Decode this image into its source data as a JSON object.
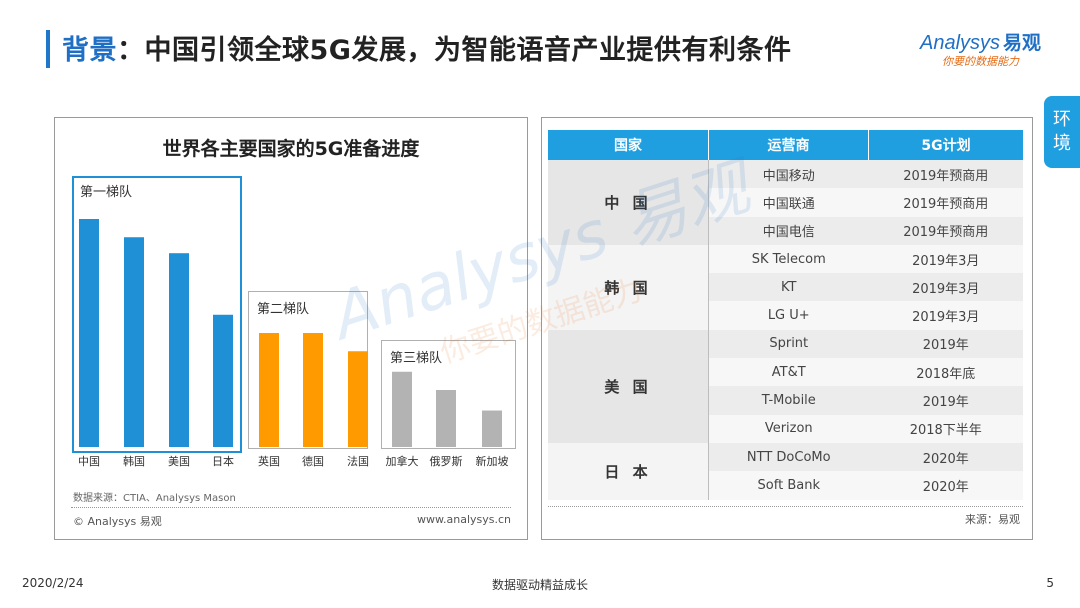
{
  "header": {
    "title_accent": "背景",
    "title_rest": "：中国引领全球5G发展，为智能语音产业提供有利条件",
    "logo_text": "Analysys",
    "logo_cn": "易观",
    "logo_tagline": "你要的数据能力"
  },
  "side_tab": {
    "label_line1": "环",
    "label_line2": "境"
  },
  "left_panel": {
    "source": "数据来源：CTIA、Analysys Mason",
    "copyright": "© Analysys 易观",
    "website": "www.analysys.cn"
  },
  "chart_data": {
    "type": "bar",
    "title": "世界各主要国家的5G准备进度",
    "groups": [
      {
        "label": "第一梯队",
        "color": "#1f8fd6",
        "categories": [
          "中国",
          "韩国",
          "美国",
          "日本"
        ],
        "values": [
          100,
          92,
          85,
          58
        ]
      },
      {
        "label": "第二梯队",
        "color": "#ff9a00",
        "categories": [
          "英国",
          "德国",
          "法国"
        ],
        "values": [
          50,
          50,
          42
        ]
      },
      {
        "label": "第三梯队",
        "color": "#b3b3b3",
        "categories": [
          "加拿大",
          "俄罗斯",
          "新加坡"
        ],
        "values": [
          33,
          25,
          16
        ]
      }
    ],
    "ylim": [
      0,
      100
    ]
  },
  "table": {
    "headers": [
      "国家",
      "运营商",
      "5G计划"
    ],
    "groups": [
      {
        "country": "中 国",
        "rows": [
          [
            "中国移动",
            "2019年预商用"
          ],
          [
            "中国联通",
            "2019年预商用"
          ],
          [
            "中国电信",
            "2019年预商用"
          ]
        ]
      },
      {
        "country": "韩 国",
        "rows": [
          [
            "SK Telecom",
            "2019年3月"
          ],
          [
            "KT",
            "2019年3月"
          ],
          [
            "LG U+",
            "2019年3月"
          ]
        ]
      },
      {
        "country": "美 国",
        "rows": [
          [
            "Sprint",
            "2019年"
          ],
          [
            "AT&T",
            "2018年底"
          ],
          [
            "T-Mobile",
            "2019年"
          ],
          [
            "Verizon",
            "2018下半年"
          ]
        ]
      },
      {
        "country": "日 本",
        "rows": [
          [
            "NTT DoCoMo",
            "2020年"
          ],
          [
            "Soft Bank",
            "2020年"
          ]
        ]
      }
    ],
    "source": "来源：易观"
  },
  "footer": {
    "date": "2020/2/24",
    "slogan": "数据驱动精益成长",
    "page": "5"
  }
}
